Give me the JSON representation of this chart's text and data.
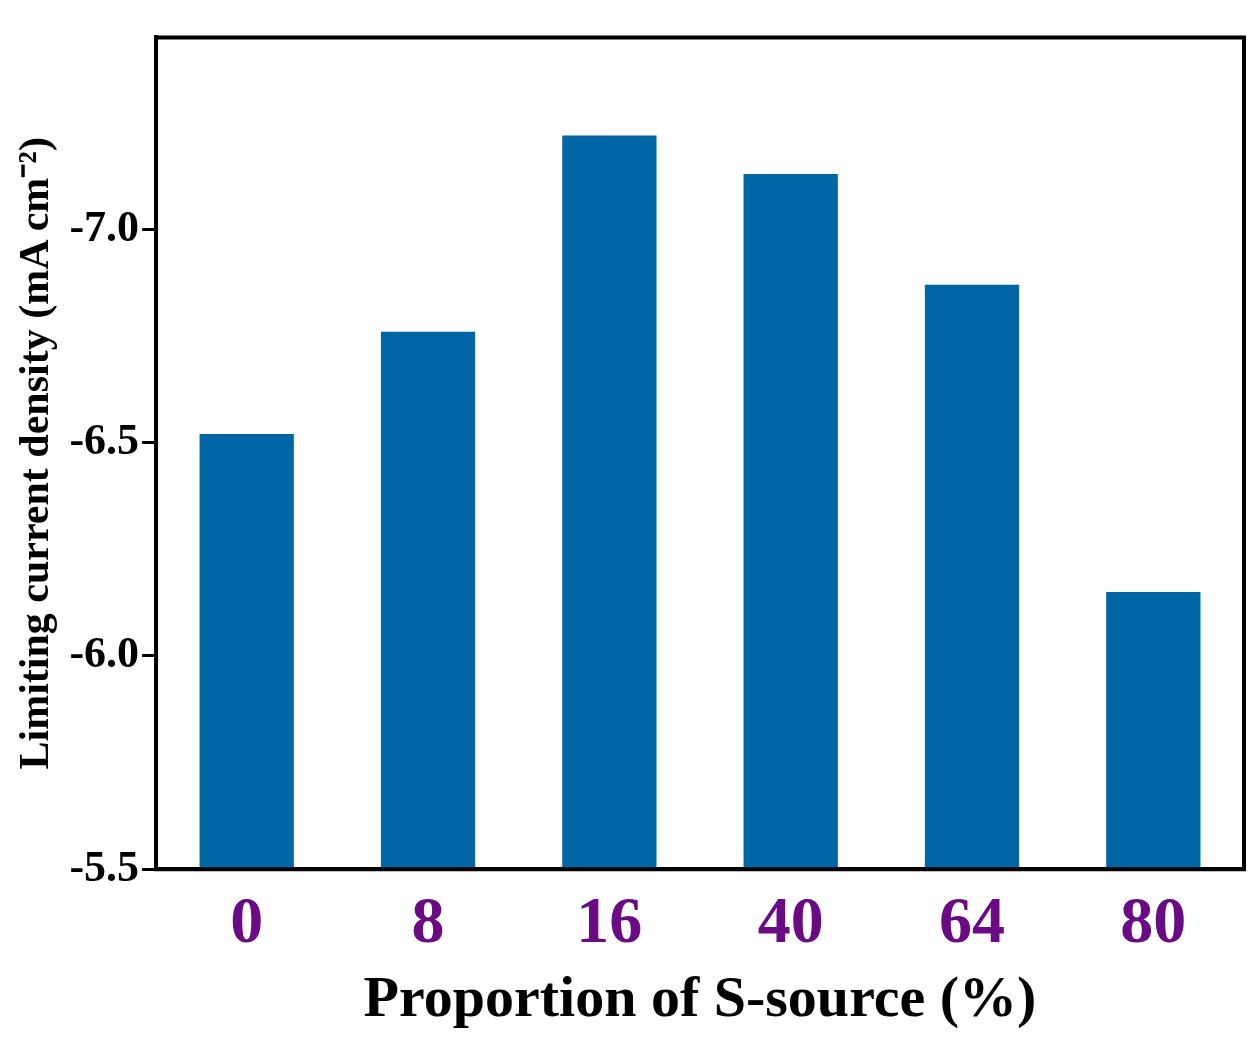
{
  "chart_data": {
    "type": "bar",
    "xlabel": "Proportion of S-source (%)",
    "ylabel": "Limiting current density (mA cm⁻²)",
    "categories": [
      "0",
      "8",
      "16",
      "40",
      "64",
      "80"
    ],
    "values": [
      -6.52,
      -6.76,
      -7.22,
      -7.13,
      -6.87,
      -6.15
    ],
    "color": "#0066a6",
    "ylim": [
      -5.5,
      -7.45
    ],
    "yticks": [
      {
        "value": -5.5,
        "label": "-5.5"
      },
      {
        "value": -6,
        "label": "-6.0"
      },
      {
        "value": -6.5,
        "label": "-6.5"
      },
      {
        "value": -7,
        "label": "-7.0"
      }
    ],
    "grid": false,
    "legend": false
  }
}
